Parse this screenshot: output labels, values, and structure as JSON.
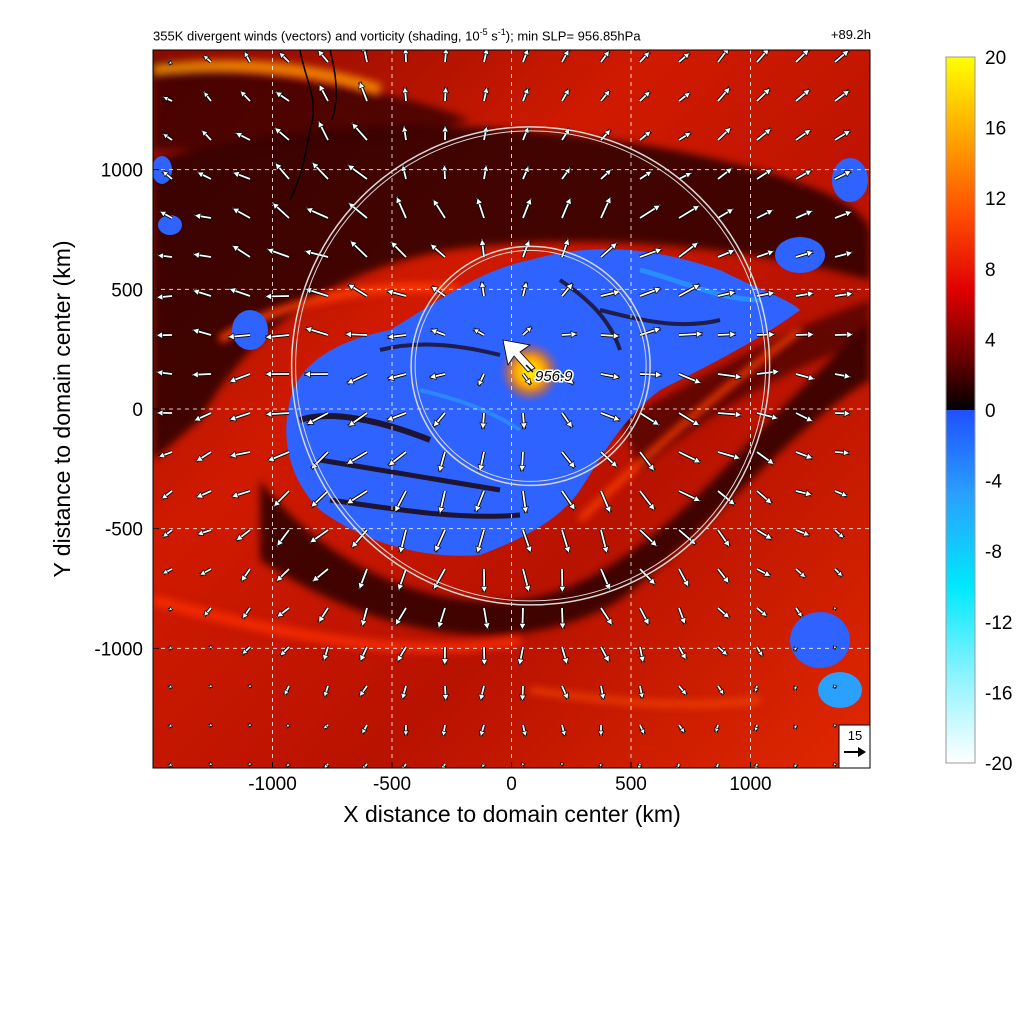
{
  "figure": {
    "title_prefix": "355K divergent winds (vectors) and vorticity (shading, 10",
    "title_exp": "-5",
    "title_unit": " s",
    "title_unit_exp": "-1",
    "title_suffix": "); min SLP= 956.85hPa",
    "time_label": "+89.2h"
  },
  "chart_data": {
    "type": "heatmap",
    "xlabel": "X distance to domain center (km)",
    "ylabel": "Y distance to domain center (km)",
    "xlim": [
      -1500,
      1500
    ],
    "ylim": [
      -1500,
      1500
    ],
    "xticks": [
      -1000,
      -500,
      0,
      500,
      1000
    ],
    "yticks": [
      -1000,
      -500,
      0,
      500,
      1000
    ],
    "grid": true,
    "grid_style": "dashed-white",
    "colorbar": {
      "ticks": [
        20,
        16,
        12,
        8,
        4,
        0,
        -4,
        -8,
        -12,
        -16,
        -20
      ],
      "range": [
        -20,
        20
      ],
      "colors_pos": [
        "#000000",
        "#5a0000",
        "#b00000",
        "#ff2000",
        "#ff8000",
        "#ffcc00",
        "#ffff00"
      ],
      "colors_neg": [
        "#3050ff",
        "#2aa0ff",
        "#00e0ff",
        "#80f0ff",
        "#ffffff"
      ]
    },
    "min_slp": {
      "label": "956.9",
      "x": 80,
      "y": 150
    },
    "circles_km": [
      {
        "cx": 80,
        "cy": 180,
        "r": 500
      },
      {
        "cx": 80,
        "cy": 180,
        "r": 1000
      }
    ],
    "reference_vector": {
      "label": "15",
      "magnitude": 15
    },
    "vorticity_features": [
      {
        "type": "positive-band",
        "desc": "warm shading background"
      },
      {
        "type": "negative-region",
        "cx": -100,
        "cy": 0,
        "rx": 900,
        "ry": 400
      }
    ]
  },
  "colors": {
    "background_field": "#c81400",
    "negative_vort": "#2e63ff",
    "circle": "#d8d8d8",
    "vector": "#ffffff"
  }
}
